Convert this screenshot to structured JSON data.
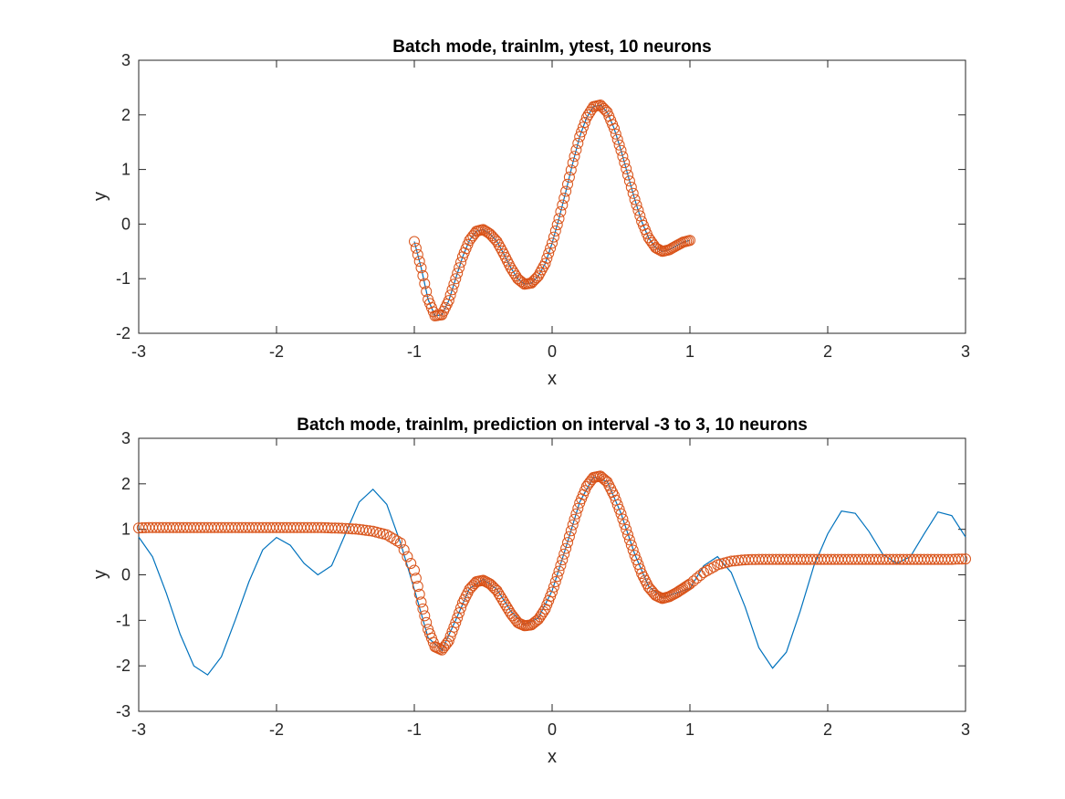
{
  "figure": {
    "colors": {
      "line": "#0072BD",
      "marker": "#D95319",
      "axis": "#262626"
    }
  },
  "chart_data": [
    {
      "type": "line",
      "title": "Batch mode, trainlm, ytest, 10 neurons",
      "xlabel": "x",
      "ylabel": "y",
      "xlim": [
        -3,
        3
      ],
      "ylim": [
        -2,
        3
      ],
      "xticks": [
        "-3",
        "-2",
        "-1",
        "0",
        "1",
        "2",
        "3"
      ],
      "yticks": [
        "-2",
        "-1",
        "0",
        "1",
        "2",
        "3"
      ],
      "grid": false,
      "series": [
        {
          "style": "line",
          "color": "#0072BD",
          "x": [
            -1.0,
            -0.95,
            -0.9,
            -0.85,
            -0.8,
            -0.75,
            -0.7,
            -0.65,
            -0.6,
            -0.55,
            -0.5,
            -0.45,
            -0.4,
            -0.35,
            -0.3,
            -0.25,
            -0.2,
            -0.15,
            -0.1,
            -0.05,
            0.0,
            0.05,
            0.1,
            0.15,
            0.2,
            0.25,
            0.3,
            0.35,
            0.4,
            0.45,
            0.5,
            0.55,
            0.6,
            0.65,
            0.7,
            0.75,
            0.8,
            0.85,
            0.9,
            0.95,
            1.0
          ],
          "y": [
            -0.32,
            -0.8,
            -1.38,
            -1.68,
            -1.66,
            -1.4,
            -1.0,
            -0.6,
            -0.3,
            -0.13,
            -0.1,
            -0.18,
            -0.32,
            -0.55,
            -0.8,
            -1.0,
            -1.1,
            -1.08,
            -0.95,
            -0.72,
            -0.35,
            0.1,
            0.6,
            1.12,
            1.6,
            1.95,
            2.15,
            2.18,
            2.05,
            1.75,
            1.35,
            0.9,
            0.45,
            0.05,
            -0.25,
            -0.43,
            -0.5,
            -0.47,
            -0.4,
            -0.33,
            -0.3
          ]
        },
        {
          "style": "marker",
          "color": "#D95319",
          "x": [
            -1.0,
            -0.95,
            -0.9,
            -0.85,
            -0.8,
            -0.75,
            -0.7,
            -0.65,
            -0.6,
            -0.55,
            -0.5,
            -0.45,
            -0.4,
            -0.35,
            -0.3,
            -0.25,
            -0.2,
            -0.15,
            -0.1,
            -0.05,
            0.0,
            0.05,
            0.1,
            0.15,
            0.2,
            0.25,
            0.3,
            0.35,
            0.4,
            0.45,
            0.5,
            0.55,
            0.6,
            0.65,
            0.7,
            0.75,
            0.8,
            0.85,
            0.9,
            0.95,
            1.0
          ],
          "y": [
            -0.32,
            -0.8,
            -1.38,
            -1.68,
            -1.66,
            -1.4,
            -1.0,
            -0.6,
            -0.3,
            -0.13,
            -0.1,
            -0.18,
            -0.32,
            -0.55,
            -0.8,
            -1.0,
            -1.1,
            -1.08,
            -0.95,
            -0.72,
            -0.35,
            0.1,
            0.6,
            1.12,
            1.6,
            1.95,
            2.15,
            2.18,
            2.05,
            1.75,
            1.35,
            0.9,
            0.45,
            0.05,
            -0.25,
            -0.43,
            -0.5,
            -0.47,
            -0.4,
            -0.33,
            -0.3
          ]
        }
      ]
    },
    {
      "type": "line",
      "title": "Batch mode, trainlm, prediction on interval -3 to 3, 10 neurons",
      "xlabel": "x",
      "ylabel": "y",
      "xlim": [
        -3,
        3
      ],
      "ylim": [
        -3,
        3
      ],
      "xticks": [
        "-3",
        "-2",
        "-1",
        "0",
        "1",
        "2",
        "3"
      ],
      "yticks": [
        "-3",
        "-2",
        "-1",
        "0",
        "1",
        "2",
        "3"
      ],
      "grid": false,
      "series": [
        {
          "style": "line",
          "color": "#0072BD",
          "x": [
            -3.0,
            -2.9,
            -2.8,
            -2.7,
            -2.6,
            -2.5,
            -2.4,
            -2.3,
            -2.2,
            -2.1,
            -2.0,
            -1.9,
            -1.8,
            -1.7,
            -1.6,
            -1.5,
            -1.4,
            -1.3,
            -1.2,
            -1.1,
            -1.0,
            -0.9,
            -0.8,
            -0.7,
            -0.6,
            -0.5,
            -0.4,
            -0.3,
            -0.2,
            -0.1,
            0.0,
            0.1,
            0.2,
            0.3,
            0.4,
            0.5,
            0.6,
            0.7,
            0.8,
            0.9,
            1.0,
            1.1,
            1.2,
            1.3,
            1.4,
            1.5,
            1.6,
            1.7,
            1.8,
            1.9,
            2.0,
            2.1,
            2.2,
            2.3,
            2.4,
            2.5,
            2.6,
            2.7,
            2.8,
            2.9,
            3.0
          ],
          "y": [
            0.83,
            0.4,
            -0.4,
            -1.3,
            -2.0,
            -2.2,
            -1.8,
            -1.0,
            -0.15,
            0.55,
            0.82,
            0.65,
            0.25,
            0.0,
            0.2,
            0.9,
            1.6,
            1.88,
            1.55,
            0.7,
            -0.32,
            -1.38,
            -1.66,
            -1.0,
            -0.3,
            -0.1,
            -0.32,
            -0.8,
            -1.1,
            -0.95,
            -0.35,
            0.6,
            1.6,
            2.15,
            2.05,
            1.35,
            0.45,
            -0.25,
            -0.5,
            -0.4,
            -0.3,
            0.2,
            0.4,
            0.05,
            -0.7,
            -1.6,
            -2.05,
            -1.7,
            -0.8,
            0.2,
            0.9,
            1.4,
            1.35,
            0.95,
            0.45,
            0.25,
            0.4,
            0.9,
            1.38,
            1.3,
            0.83
          ]
        },
        {
          "style": "marker",
          "color": "#D95319",
          "x": [
            -3.0,
            -2.9,
            -2.8,
            -2.7,
            -2.6,
            -2.5,
            -2.4,
            -2.3,
            -2.2,
            -2.1,
            -2.0,
            -1.9,
            -1.8,
            -1.7,
            -1.6,
            -1.5,
            -1.4,
            -1.3,
            -1.2,
            -1.1,
            -1.0,
            -0.95,
            -0.9,
            -0.85,
            -0.8,
            -0.75,
            -0.7,
            -0.65,
            -0.6,
            -0.55,
            -0.5,
            -0.45,
            -0.4,
            -0.35,
            -0.3,
            -0.25,
            -0.2,
            -0.15,
            -0.1,
            -0.05,
            0.0,
            0.05,
            0.1,
            0.15,
            0.2,
            0.25,
            0.3,
            0.35,
            0.4,
            0.45,
            0.5,
            0.55,
            0.6,
            0.65,
            0.7,
            0.75,
            0.8,
            0.85,
            0.9,
            0.95,
            1.0,
            1.1,
            1.2,
            1.3,
            1.4,
            1.5,
            1.6,
            1.7,
            1.8,
            1.9,
            2.0,
            2.1,
            2.2,
            2.3,
            2.4,
            2.5,
            2.6,
            2.7,
            2.8,
            2.9,
            3.0
          ],
          "y": [
            1.03,
            1.04,
            1.04,
            1.04,
            1.04,
            1.04,
            1.04,
            1.04,
            1.04,
            1.04,
            1.04,
            1.04,
            1.04,
            1.04,
            1.03,
            1.02,
            1.0,
            0.96,
            0.88,
            0.7,
            0.1,
            -0.6,
            -1.2,
            -1.58,
            -1.65,
            -1.45,
            -1.05,
            -0.62,
            -0.32,
            -0.15,
            -0.12,
            -0.2,
            -0.35,
            -0.6,
            -0.85,
            -1.05,
            -1.12,
            -1.1,
            -0.98,
            -0.75,
            -0.38,
            0.08,
            0.58,
            1.1,
            1.58,
            1.94,
            2.14,
            2.17,
            2.04,
            1.74,
            1.34,
            0.88,
            0.43,
            0.03,
            -0.27,
            -0.45,
            -0.52,
            -0.48,
            -0.4,
            -0.3,
            -0.2,
            0.05,
            0.22,
            0.3,
            0.33,
            0.34,
            0.34,
            0.34,
            0.34,
            0.34,
            0.34,
            0.34,
            0.34,
            0.34,
            0.34,
            0.34,
            0.34,
            0.34,
            0.34,
            0.34,
            0.35
          ]
        }
      ]
    }
  ]
}
